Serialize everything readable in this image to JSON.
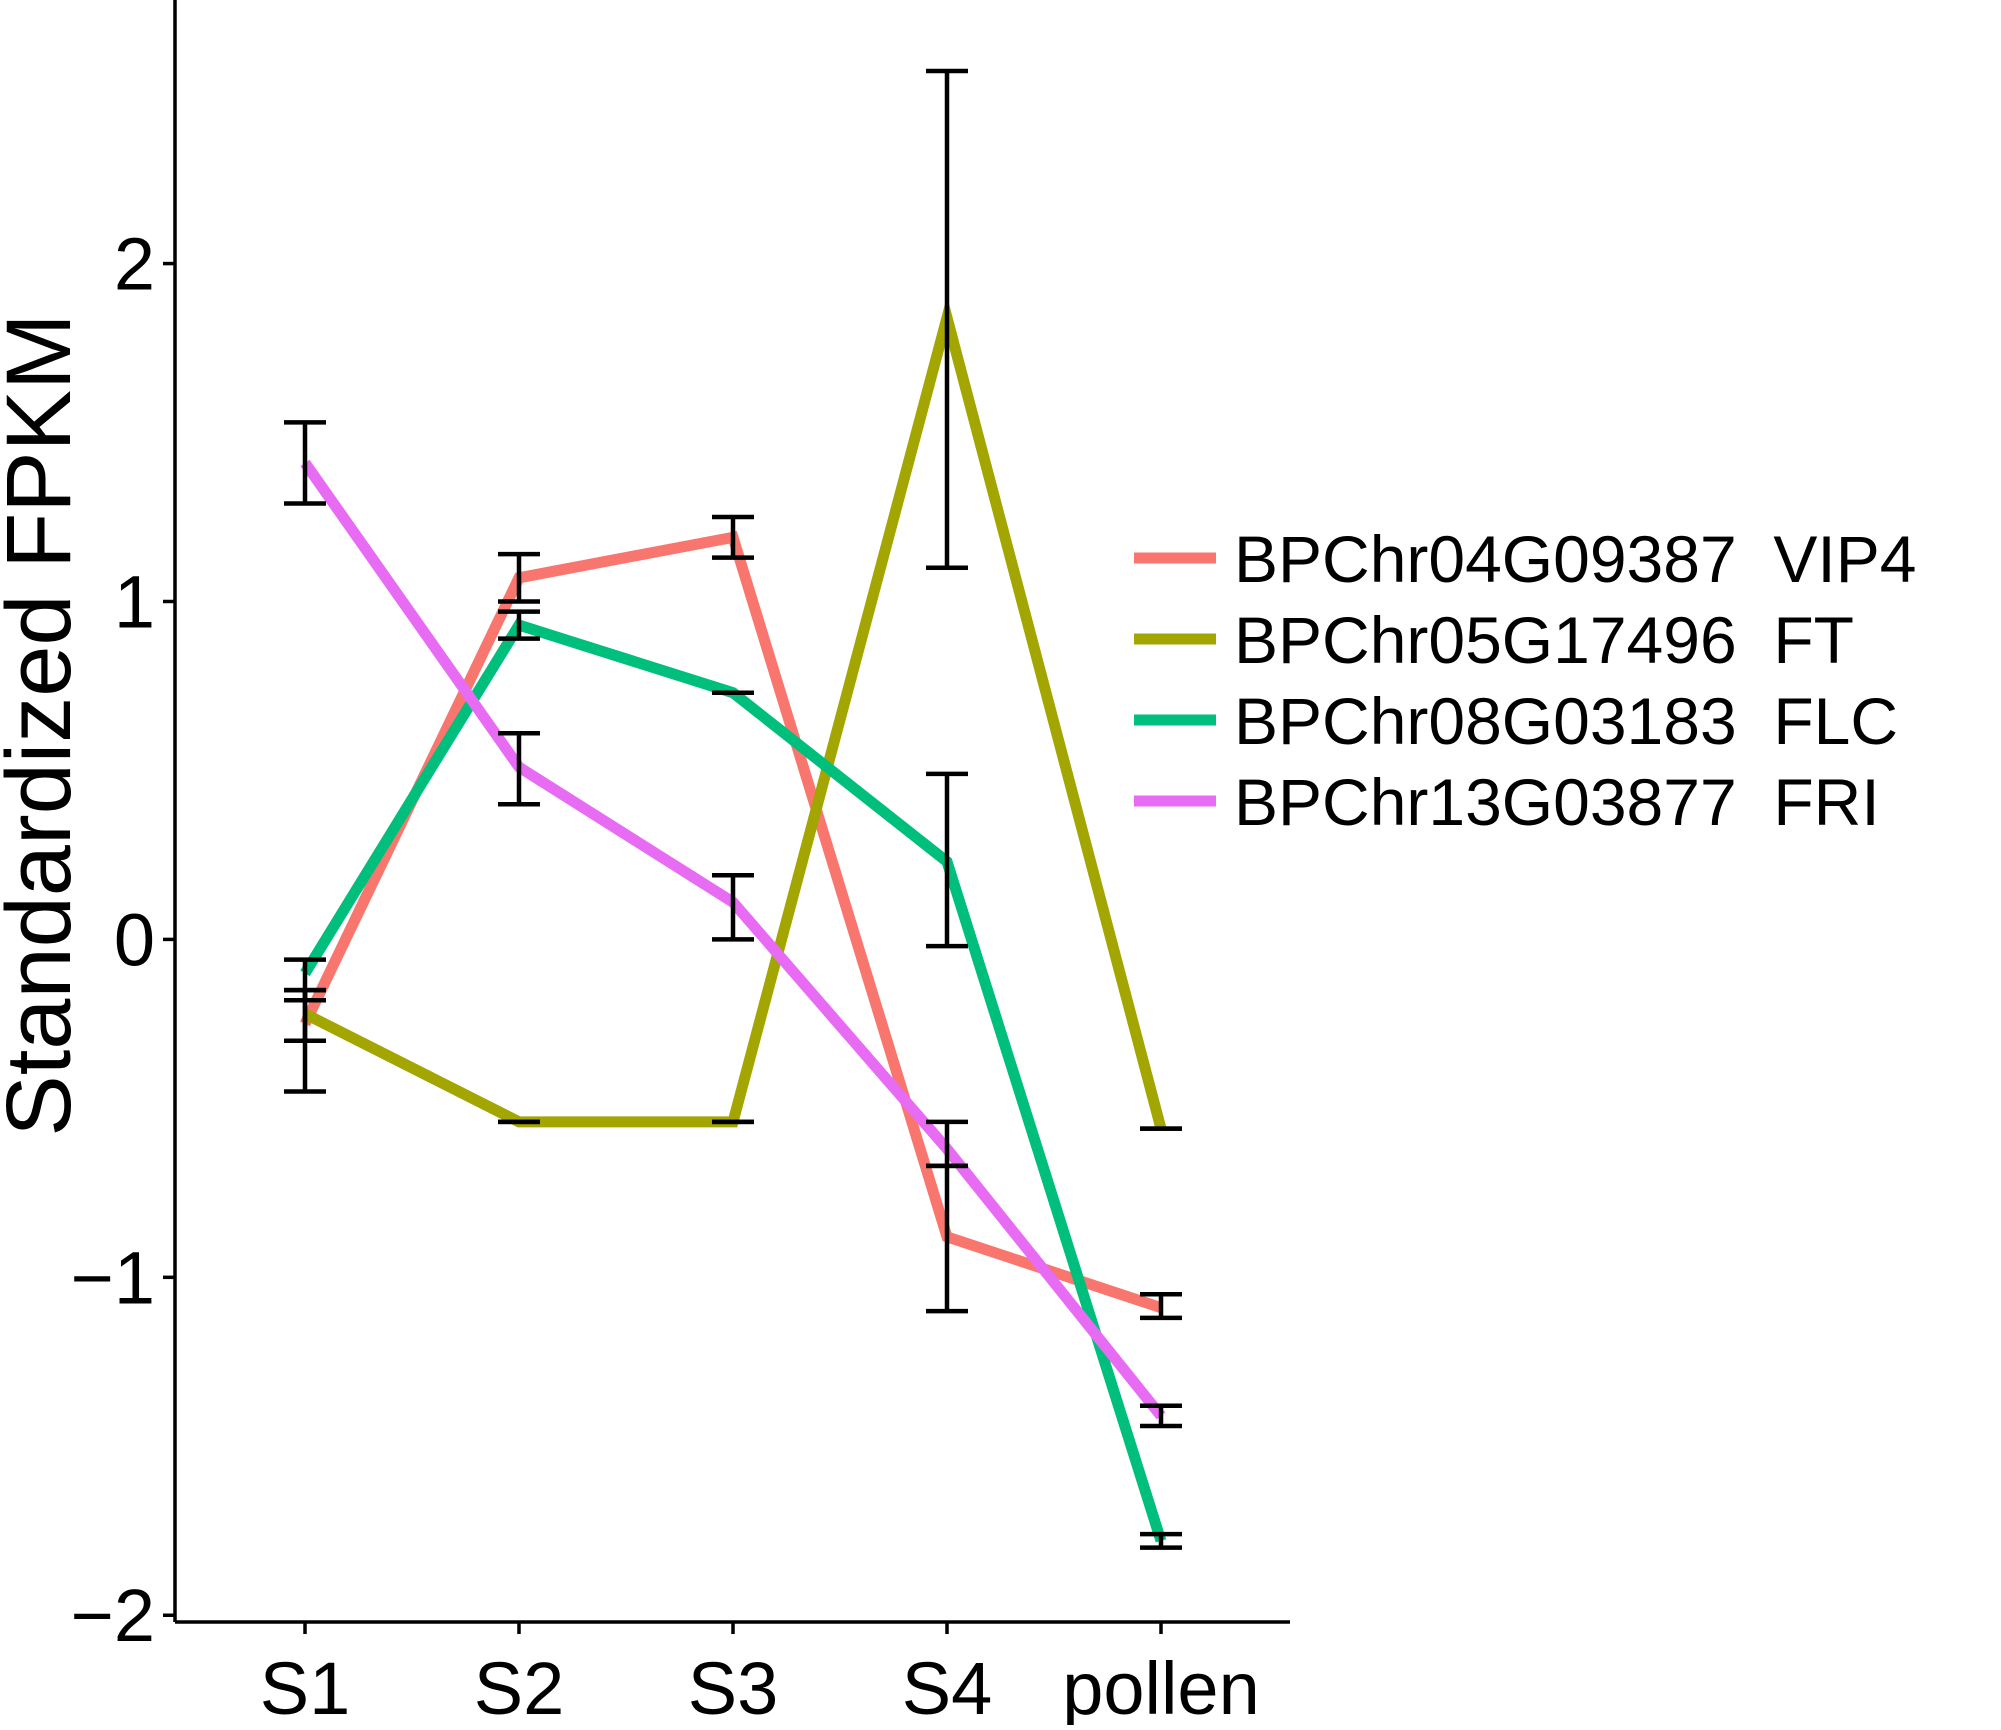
{
  "chart_data": {
    "type": "line",
    "title": "",
    "xlabel": "",
    "ylabel": "Standardized FPKM",
    "categories": [
      "S1",
      "S2",
      "S3",
      "S4",
      "pollen"
    ],
    "ylim": [
      -2.02,
      2.78
    ],
    "yticks": [
      -2,
      -1,
      0,
      1,
      2
    ],
    "ytick_labels": [
      "−2",
      "−1",
      "0",
      "1",
      "2"
    ],
    "grid": false,
    "legend": {
      "position": "right"
    },
    "series": [
      {
        "name": "BPChr04G09387  VIP4",
        "color": "#F8766D",
        "values": [
          -0.25,
          1.07,
          1.19,
          -0.88,
          -1.09
        ],
        "err_low": [
          -0.45,
          1.0,
          1.13,
          -1.1,
          -1.12
        ],
        "err_high": [
          -0.15,
          1.14,
          1.25,
          -0.67,
          -1.05
        ]
      },
      {
        "name": "BPChr05G17496  FT",
        "color": "#A3A500",
        "values": [
          -0.22,
          -0.54,
          -0.54,
          1.84,
          -0.56
        ],
        "err_low": [
          -0.3,
          -0.54,
          -0.54,
          1.1,
          -0.56
        ],
        "err_high": [
          -0.15,
          -0.54,
          -0.54,
          2.57,
          -0.56
        ]
      },
      {
        "name": "BPChr08G03183  FLC",
        "color": "#00BF7D",
        "values": [
          -0.1,
          0.93,
          0.73,
          0.23,
          -1.78
        ],
        "err_low": [
          -0.18,
          0.89,
          0.73,
          -0.02,
          -1.8
        ],
        "err_high": [
          -0.06,
          0.97,
          0.73,
          0.49,
          -1.76
        ]
      },
      {
        "name": "BPChr13G03877  FRI",
        "color": "#E76BF3",
        "values": [
          1.41,
          0.51,
          0.11,
          -0.62,
          -1.41
        ],
        "err_low": [
          1.29,
          0.4,
          0.0,
          -0.67,
          -1.44
        ],
        "err_high": [
          1.53,
          0.61,
          0.19,
          -0.54,
          -1.38
        ]
      }
    ]
  }
}
